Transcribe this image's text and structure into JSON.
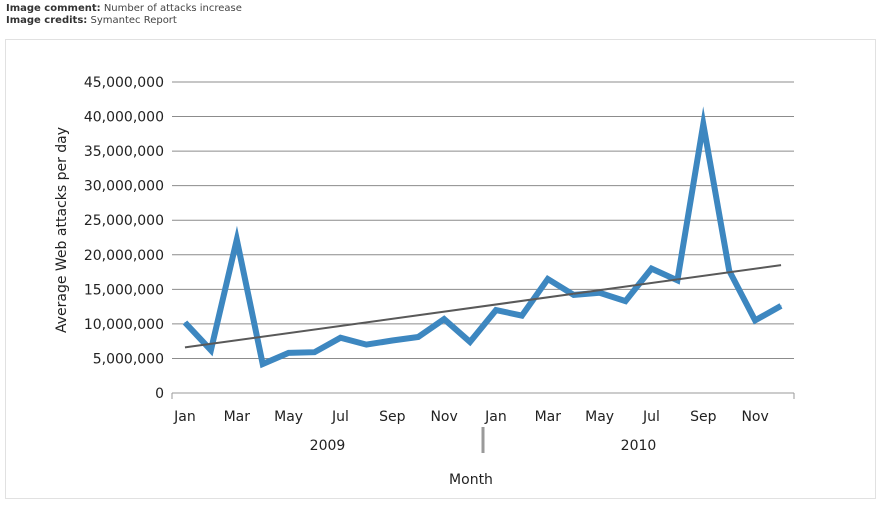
{
  "meta": {
    "comment_label": "Image comment:",
    "comment_text": "Number of attacks increase",
    "credits_label": "Image credits:",
    "credits_text": "Symantec Report"
  },
  "chart_data": {
    "type": "line",
    "title": "",
    "xlabel": "Month",
    "ylabel": "Average Web attacks per day",
    "ylim": [
      0,
      45000000
    ],
    "y_ticks": [
      0,
      5000000,
      10000000,
      15000000,
      20000000,
      25000000,
      30000000,
      35000000,
      40000000,
      45000000
    ],
    "y_tick_labels": [
      "0",
      "5,000,000",
      "10,000,000",
      "15,000,000",
      "20,000,000",
      "25,000,000",
      "30,000,000",
      "35,000,000",
      "40,000,000",
      "45,000,000"
    ],
    "x_tick_labels": [
      "Jan",
      "Mar",
      "May",
      "Jul",
      "Sep",
      "Nov",
      "Jan",
      "Mar",
      "May",
      "Jul",
      "Sep",
      "Nov"
    ],
    "year_labels": [
      "2009",
      "2010"
    ],
    "grid": true,
    "categories": [
      "Jan 2009",
      "Feb 2009",
      "Mar 2009",
      "Apr 2009",
      "May 2009",
      "Jun 2009",
      "Jul 2009",
      "Aug 2009",
      "Sep 2009",
      "Oct 2009",
      "Nov 2009",
      "Dec 2009",
      "Jan 2010",
      "Feb 2010",
      "Mar 2010",
      "Apr 2010",
      "May 2010",
      "Jun 2010",
      "Jul 2010",
      "Aug 2010",
      "Sep 2010",
      "Oct 2010",
      "Nov 2010",
      "Dec 2010"
    ],
    "series": [
      {
        "values": [
          10200000,
          6200000,
          22200000,
          4200000,
          5800000,
          5900000,
          8000000,
          7000000,
          7600000,
          8100000,
          10700000,
          7400000,
          12000000,
          11200000,
          16500000,
          14200000,
          14500000,
          13300000,
          18000000,
          16300000,
          38900000,
          17700000,
          10500000,
          12600000
        ],
        "color": "#3d87c0"
      },
      {
        "trend": true,
        "start": 6600000,
        "end": 18500000,
        "color": "#595959"
      }
    ]
  }
}
